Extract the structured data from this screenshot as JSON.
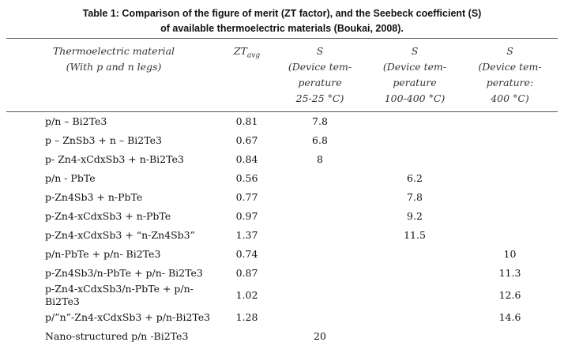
{
  "caption": {
    "lines": [
      "Table 1: Comparison of the figure of merit (ZT factor), and the Seebeck coefficient (S)",
      "of available thermoelectric materials (Boukai, 2008)."
    ]
  },
  "table": {
    "header": [
      {
        "lines": [
          "Thermoelectric material",
          "(With p and n legs)"
        ]
      },
      {
        "lines": [
          "ZT"
        ],
        "sub": "avg"
      },
      {
        "lines": [
          "S",
          "(Device tem-",
          "perature",
          "25-25 °C)"
        ]
      },
      {
        "lines": [
          "S",
          "(Device tem-",
          "perature",
          "100-400 °C)"
        ]
      },
      {
        "lines": [
          "S",
          "(Device tem-",
          "perature:",
          "400 °C)"
        ]
      }
    ],
    "rows": [
      [
        "p/n – Bi2Te3",
        0.81,
        7.8,
        null,
        null
      ],
      [
        "p – ZnSb3 + n – Bi2Te3",
        0.67,
        6.8,
        null,
        null
      ],
      [
        "p- Zn4-xCdxSb3 + n-Bi2Te3",
        0.84,
        8,
        null,
        null
      ],
      [
        "p/n - PbTe",
        0.56,
        null,
        6.2,
        null
      ],
      [
        "p-Zn4Sb3 + n-PbTe",
        0.77,
        null,
        7.8,
        null
      ],
      [
        "p-Zn4-xCdxSb3 + n-PbTe",
        0.97,
        null,
        9.2,
        null
      ],
      [
        "p-Zn4-xCdxSb3 + “n-Zn4Sb3”",
        1.37,
        null,
        11.5,
        null
      ],
      [
        "p/n-PbTe + p/n- Bi2Te3",
        0.74,
        null,
        null,
        10
      ],
      [
        "p-Zn4Sb3/n-PbTe + p/n- Bi2Te3",
        0.87,
        null,
        null,
        11.3
      ],
      [
        "p-Zn4-xCdxSb3/n-PbTe + p/n- Bi2Te3",
        1.02,
        null,
        null,
        12.6
      ],
      [
        "p/”n”-Zn4-xCdxSb3 + p/n-Bi2Te3",
        1.28,
        null,
        null,
        14.6
      ],
      [
        "Nano-structured p/n -Bi2Te3",
        null,
        20,
        null,
        null
      ]
    ]
  }
}
